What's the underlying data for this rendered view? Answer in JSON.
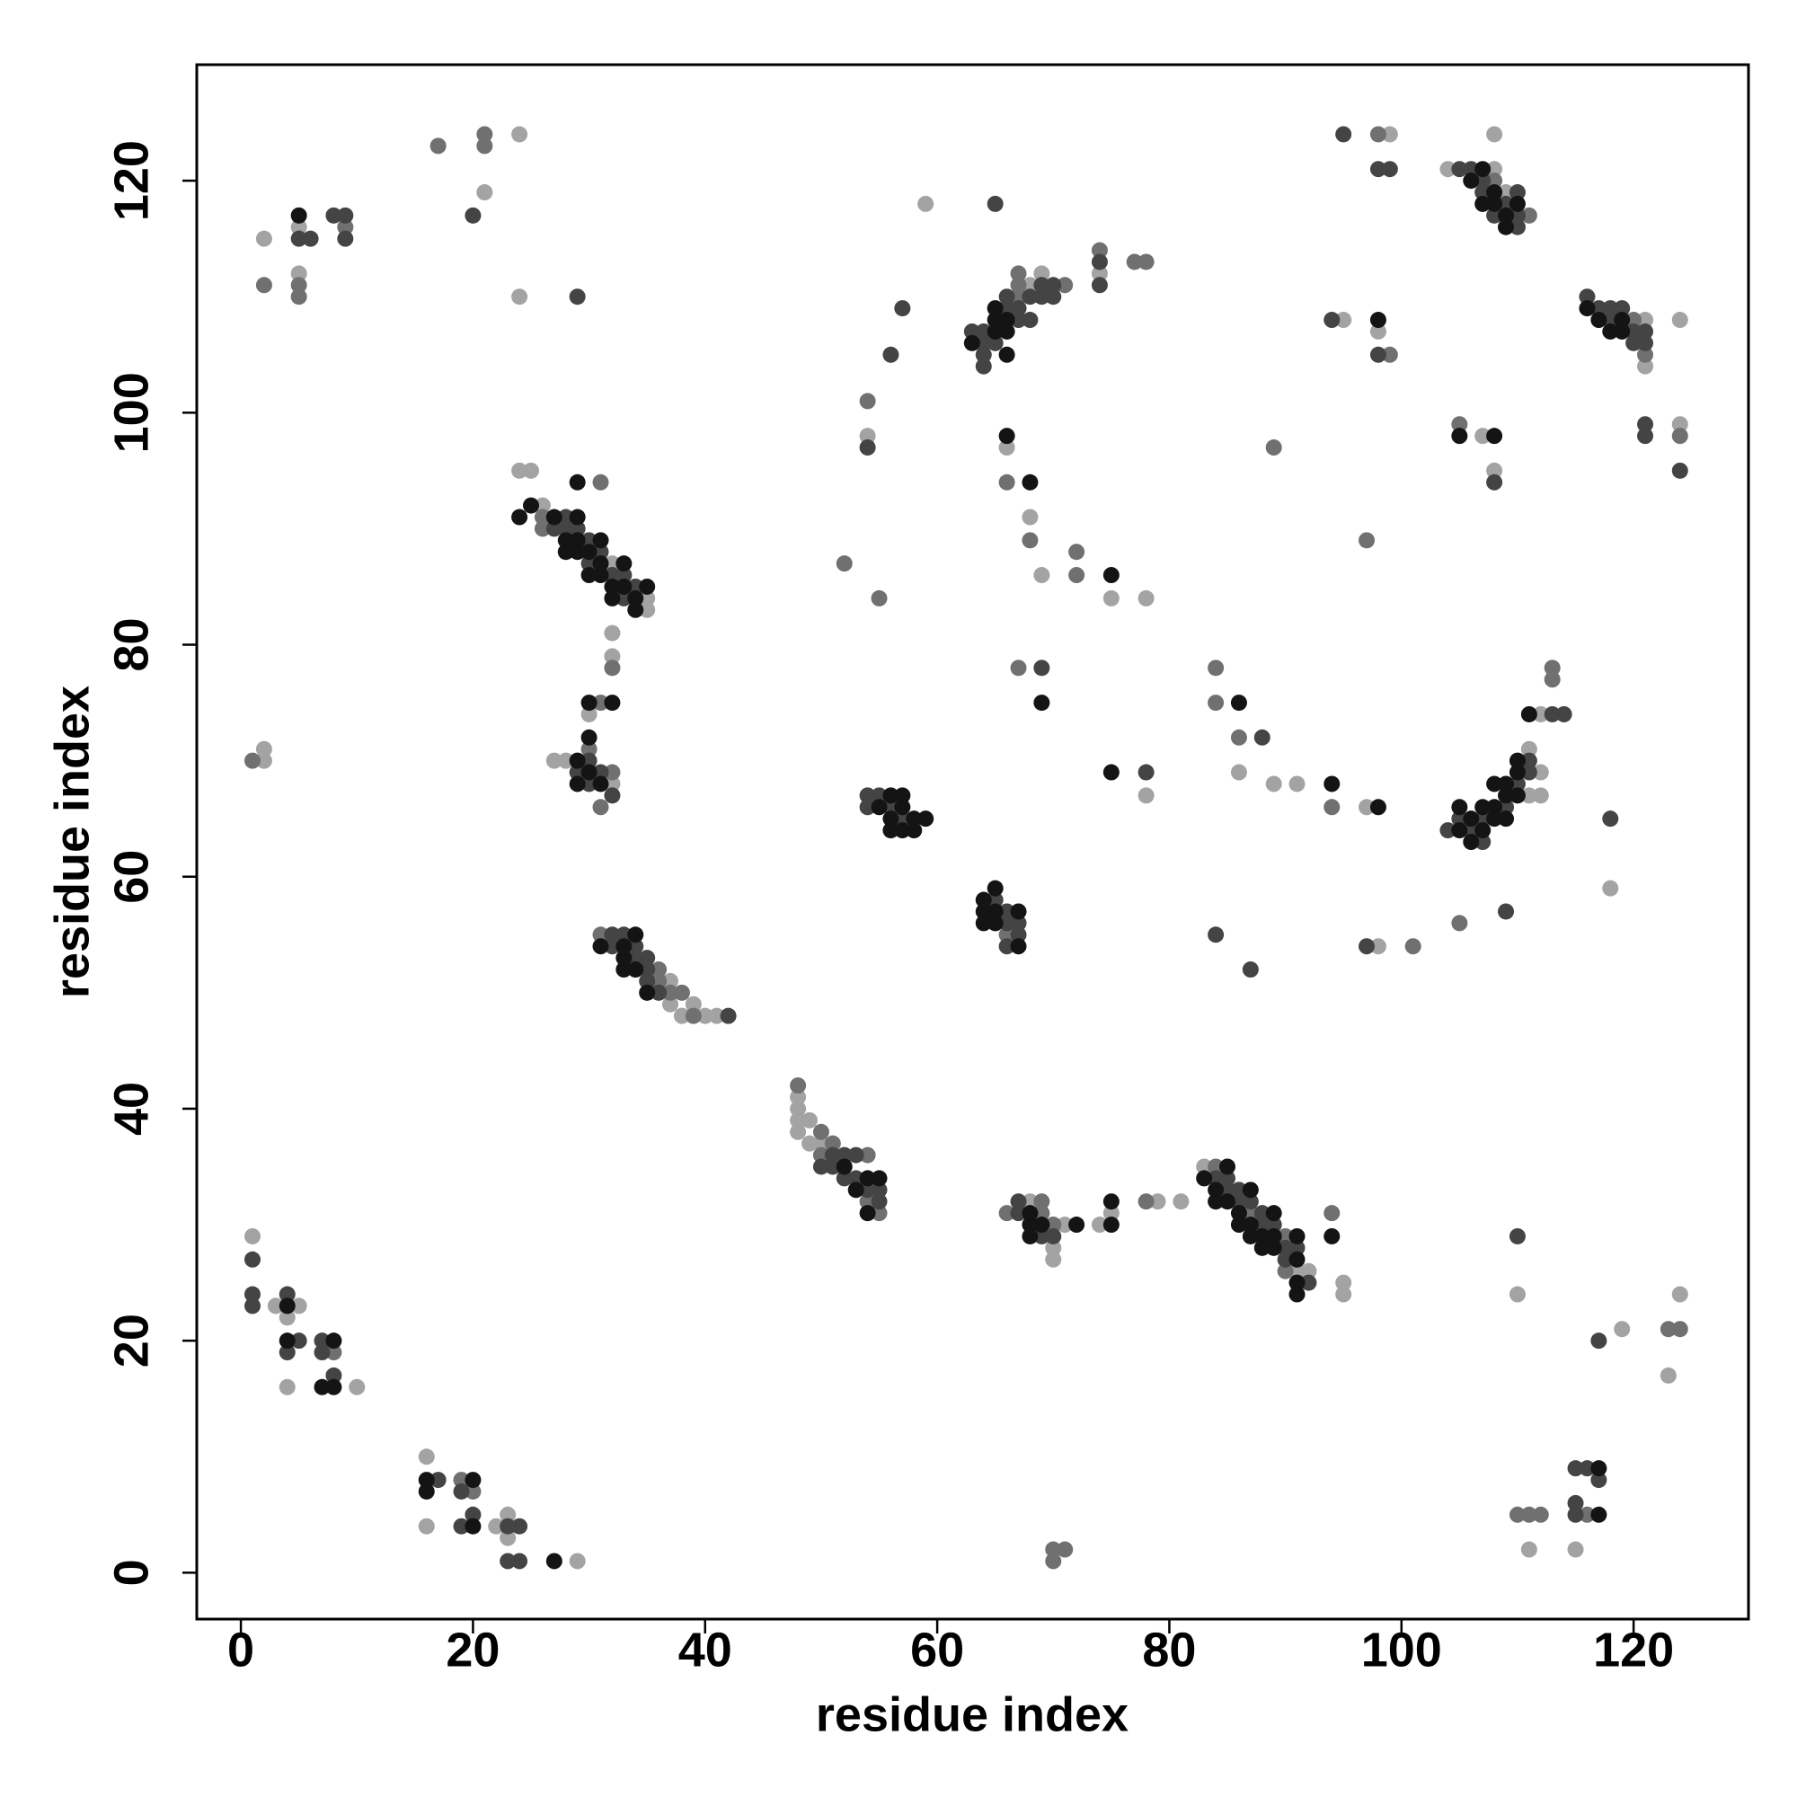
{
  "chart_data": {
    "type": "scatter",
    "xlabel": "residue index",
    "ylabel": "residue index",
    "xlim": [
      -3.8,
      129.9
    ],
    "ylim": [
      -4,
      130
    ],
    "xticks": [
      0,
      20,
      40,
      60,
      80,
      100,
      120
    ],
    "yticks": [
      0,
      20,
      40,
      60,
      80,
      100,
      120
    ],
    "grid": false,
    "series": [
      {
        "color": "#a3a3a3",
        "x": [
          2,
          5,
          5,
          24,
          21,
          24,
          99,
          108,
          104,
          108,
          109,
          59,
          74,
          69,
          68,
          98,
          95,
          121,
          121,
          124,
          54,
          66,
          68,
          69,
          75,
          78,
          107,
          108,
          124,
          24,
          25,
          26,
          32,
          35,
          35,
          32,
          32,
          30,
          28,
          27,
          32,
          2,
          2,
          86,
          89,
          91,
          78,
          97,
          112,
          111,
          112,
          111,
          112,
          118,
          98,
          37,
          37,
          38,
          39,
          40,
          41,
          48,
          48,
          48,
          48,
          49,
          49,
          50,
          68,
          71,
          70,
          70,
          74,
          75,
          79,
          81,
          83,
          91,
          92,
          95,
          95,
          110,
          119,
          124,
          123,
          1,
          3,
          4,
          5,
          4,
          10,
          16,
          16,
          22,
          23,
          23,
          29,
          111,
          115
        ],
        "y": [
          115,
          116,
          112,
          124,
          119,
          110,
          124,
          124,
          121,
          121,
          119,
          118,
          112,
          112,
          111,
          107,
          108,
          108,
          104,
          108,
          98,
          97,
          91,
          86,
          84,
          84,
          98,
          95,
          99,
          95,
          95,
          92,
          87,
          84,
          83,
          81,
          79,
          74,
          70,
          70,
          68,
          71,
          70,
          69,
          68,
          68,
          67,
          66,
          74,
          71,
          69,
          67,
          67,
          59,
          54,
          51,
          49,
          48,
          49,
          48,
          48,
          41,
          40,
          39,
          38,
          37,
          39,
          37,
          32,
          30,
          28,
          27,
          30,
          31,
          32,
          32,
          35,
          26,
          26,
          25,
          24,
          24,
          21,
          24,
          17,
          29,
          23,
          22,
          23,
          16,
          16,
          10,
          4,
          4,
          5,
          3,
          1,
          2,
          2
        ]
      },
      {
        "color": "#707070",
        "x": [
          2,
          5,
          5,
          9,
          17,
          21,
          21,
          98,
          108,
          111,
          74,
          77,
          78,
          67,
          67,
          71,
          67,
          99,
          120,
          121,
          54,
          66,
          68,
          72,
          72,
          105,
          124,
          89,
          97,
          52,
          55,
          31,
          26,
          26,
          32,
          31,
          30,
          32,
          31,
          1,
          67,
          84,
          84,
          86,
          94,
          113,
          113,
          105,
          66,
          101,
          31,
          36,
          36,
          37,
          38,
          39,
          48,
          50,
          51,
          50,
          54,
          54,
          55,
          66,
          69,
          69,
          70,
          78,
          84,
          87,
          90,
          90,
          94,
          123,
          124,
          8,
          19,
          20,
          70,
          71,
          70,
          116,
          110,
          111,
          112
        ],
        "y": [
          111,
          111,
          110,
          116,
          123,
          124,
          123,
          124,
          120,
          117,
          114,
          113,
          113,
          112,
          111,
          111,
          110,
          105,
          108,
          105,
          101,
          94,
          89,
          88,
          86,
          99,
          98,
          97,
          89,
          87,
          84,
          94,
          91,
          90,
          78,
          75,
          71,
          69,
          66,
          70,
          78,
          78,
          75,
          72,
          66,
          78,
          77,
          56,
          55,
          54,
          55,
          52,
          51,
          50,
          50,
          48,
          42,
          38,
          37,
          36,
          36,
          32,
          31,
          31,
          32,
          31,
          30,
          32,
          35,
          31,
          29,
          26,
          31,
          21,
          21,
          19,
          8,
          7,
          2,
          2,
          1,
          5,
          5,
          5,
          5
        ]
      },
      {
        "color": "#444444",
        "x": [
          5,
          6,
          8,
          9,
          9,
          20,
          29,
          95,
          98,
          99,
          105,
          106,
          107,
          107,
          110,
          109,
          108,
          110,
          110,
          65,
          74,
          74,
          69,
          70,
          66,
          68,
          69,
          70,
          66,
          67,
          67,
          68,
          64,
          64,
          65,
          63,
          64,
          64,
          57,
          56,
          94,
          98,
          116,
          117,
          118,
          119,
          118,
          120,
          121,
          120,
          121,
          54,
          108,
          121,
          121,
          124,
          27,
          28,
          28,
          29,
          30,
          31,
          30,
          32,
          33,
          33,
          34,
          30,
          29,
          31,
          30,
          32,
          69,
          88,
          78,
          113,
          114,
          111,
          111,
          110,
          109,
          107,
          104,
          106,
          107,
          105,
          118,
          109,
          54,
          55,
          54,
          56,
          57,
          65,
          66,
          66,
          67,
          67,
          66,
          84,
          87,
          97,
          32,
          33,
          32,
          34,
          34,
          35,
          35,
          35,
          36,
          42,
          50,
          51,
          52,
          51,
          53,
          52,
          53,
          54,
          55,
          55,
          67,
          67,
          69,
          70,
          84,
          85,
          85,
          86,
          86,
          87,
          88,
          88,
          89,
          90,
          91,
          90,
          92,
          110,
          117,
          1,
          1,
          1,
          4,
          5,
          4,
          7,
          7,
          8,
          17,
          19,
          20,
          19,
          23,
          24,
          23,
          24,
          115,
          116,
          117,
          115,
          115
        ],
        "y": [
          115,
          115,
          117,
          117,
          115,
          117,
          110,
          124,
          121,
          121,
          121,
          121,
          120,
          119,
          119,
          118,
          117,
          117,
          116,
          118,
          113,
          111,
          111,
          111,
          110,
          110,
          110,
          110,
          109,
          109,
          108,
          108,
          107,
          106,
          106,
          107,
          105,
          104,
          109,
          105,
          108,
          105,
          110,
          109,
          109,
          109,
          108,
          107,
          107,
          106,
          106,
          97,
          94,
          99,
          98,
          95,
          90,
          91,
          90,
          90,
          89,
          88,
          87,
          86,
          86,
          84,
          85,
          70,
          69,
          69,
          68,
          67,
          78,
          72,
          69,
          74,
          74,
          70,
          69,
          68,
          66,
          65,
          64,
          64,
          63,
          65,
          65,
          57,
          67,
          67,
          66,
          66,
          65,
          58,
          57,
          56,
          56,
          55,
          54,
          55,
          52,
          54,
          55,
          55,
          54,
          54,
          53,
          53,
          52,
          51,
          50,
          48,
          35,
          36,
          36,
          35,
          36,
          34,
          34,
          33,
          33,
          32,
          32,
          31,
          29,
          29,
          34,
          34,
          33,
          33,
          32,
          32,
          31,
          30,
          30,
          28,
          28,
          27,
          25,
          29,
          20,
          27,
          24,
          23,
          24,
          20,
          19,
          20,
          19,
          17,
          8,
          7,
          5,
          4,
          4,
          4,
          1,
          1,
          9,
          9,
          8,
          6,
          5
        ]
      },
      {
        "color": "#141414",
        "x": [
          5,
          107,
          106,
          108,
          107,
          108,
          110,
          109,
          109,
          65,
          65,
          66,
          65,
          66,
          63,
          66,
          98,
          116,
          117,
          119,
          118,
          119,
          66,
          68,
          75,
          105,
          108,
          29,
          24,
          25,
          27,
          28,
          29,
          29,
          28,
          29,
          30,
          31,
          30,
          31,
          31,
          32,
          33,
          33,
          32,
          34,
          34,
          35,
          30,
          32,
          30,
          29,
          30,
          29,
          31,
          69,
          86,
          75,
          94,
          98,
          111,
          110,
          110,
          109,
          108,
          109,
          110,
          107,
          108,
          105,
          106,
          108,
          109,
          105,
          107,
          106,
          56,
          57,
          55,
          57,
          56,
          58,
          59,
          56,
          57,
          58,
          65,
          64,
          64,
          65,
          67,
          64,
          65,
          67,
          34,
          31,
          33,
          33,
          33,
          34,
          35,
          52,
          54,
          55,
          53,
          54,
          68,
          68,
          69,
          72,
          68,
          75,
          75,
          85,
          83,
          84,
          87,
          84,
          85,
          86,
          89,
          86,
          87,
          87,
          88,
          89,
          91,
          88,
          89,
          91,
          91,
          91,
          94,
          4,
          4,
          8,
          7,
          8,
          16,
          16,
          20,
          20,
          27,
          117,
          117
        ],
        "y": [
          117,
          121,
          120,
          119,
          118,
          118,
          118,
          117,
          116,
          109,
          108,
          108,
          107,
          107,
          106,
          105,
          108,
          109,
          108,
          108,
          107,
          107,
          98,
          94,
          86,
          98,
          98,
          94,
          91,
          92,
          91,
          89,
          91,
          89,
          88,
          88,
          88,
          89,
          86,
          87,
          86,
          85,
          87,
          85,
          84,
          84,
          83,
          85,
          75,
          75,
          72,
          70,
          69,
          68,
          68,
          75,
          75,
          69,
          68,
          66,
          74,
          70,
          69,
          68,
          68,
          67,
          67,
          66,
          66,
          66,
          65,
          65,
          65,
          64,
          64,
          63,
          67,
          67,
          66,
          66,
          65,
          65,
          65,
          64,
          64,
          64,
          59,
          58,
          57,
          57,
          57,
          56,
          56,
          54,
          55,
          54,
          54,
          53,
          52,
          52,
          50,
          35,
          34,
          34,
          33,
          31,
          31,
          30,
          30,
          30,
          29,
          30,
          32,
          35,
          34,
          33,
          33,
          32,
          32,
          31,
          31,
          30,
          30,
          29,
          29,
          29,
          29,
          28,
          28,
          27,
          25,
          24,
          29,
          23,
          20,
          20,
          16,
          16,
          8,
          7,
          8,
          4,
          1,
          9,
          5
        ]
      }
    ]
  }
}
